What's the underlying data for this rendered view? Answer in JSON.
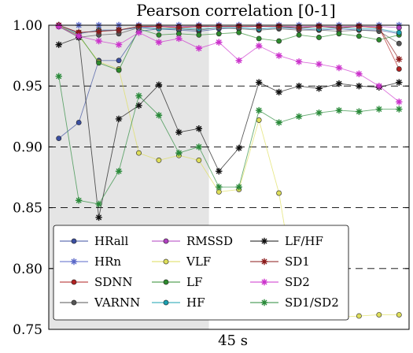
{
  "chart_data": {
    "type": "line",
    "title": "Pearson correlation [0-1]",
    "xlabel": "45 s",
    "ylabel": "",
    "ylim": [
      0.75,
      1.0
    ],
    "yticks": [
      0.75,
      0.8,
      0.85,
      0.9,
      0.95,
      1.0
    ],
    "ytick_labels": [
      "0.75",
      "0.80",
      "0.85",
      "0.90",
      "0.95",
      "1.00"
    ],
    "x": [
      1,
      2,
      3,
      4,
      5,
      6,
      7,
      8,
      9,
      10,
      11,
      12,
      13,
      14,
      15,
      16,
      17,
      18
    ],
    "xlim": [
      0.5,
      18.5
    ],
    "dashed_grid": [
      0.8,
      0.85,
      0.9,
      0.95
    ],
    "shaded_x_range": [
      0.5,
      8.5
    ],
    "shade_color": "#e5e5e5",
    "legend_position": "lower-left",
    "series": [
      {
        "name": "HRall",
        "color": "#3b4fa0",
        "marker": "dot",
        "values": [
          0.907,
          0.92,
          0.971,
          0.971,
          0.995,
          0.997,
          0.996,
          0.995,
          0.997,
          0.998,
          0.997,
          0.998,
          0.997,
          0.996,
          0.997,
          0.996,
          0.996,
          0.993
        ]
      },
      {
        "name": "HRn",
        "color": "#5a68c8",
        "marker": "star",
        "values": [
          1.0,
          1.0,
          1.0,
          1.0,
          1.0,
          1.0,
          1.0,
          1.0,
          1.0,
          1.0,
          1.0,
          1.0,
          1.0,
          1.0,
          1.0,
          1.0,
          1.0,
          1.0
        ]
      },
      {
        "name": "SDNN",
        "color": "#b22222",
        "marker": "dot",
        "values": [
          1.0,
          0.994,
          0.995,
          0.996,
          0.999,
          0.999,
          0.998,
          0.999,
          0.999,
          0.999,
          0.999,
          0.999,
          0.998,
          0.999,
          0.998,
          0.999,
          0.998,
          0.964
        ]
      },
      {
        "name": "VARNN",
        "color": "#555555",
        "marker": "dot",
        "values": [
          0.999,
          0.99,
          0.992,
          0.993,
          0.998,
          0.997,
          0.997,
          0.996,
          0.998,
          0.997,
          0.996,
          0.997,
          0.996,
          0.996,
          0.995,
          0.996,
          0.995,
          0.985
        ]
      },
      {
        "name": "RMSSD",
        "color": "#b040c0",
        "marker": "dot",
        "values": [
          1.0,
          0.993,
          0.996,
          0.996,
          0.998,
          0.999,
          0.999,
          0.999,
          0.999,
          0.999,
          0.999,
          0.999,
          0.999,
          0.999,
          0.999,
          0.999,
          0.999,
          0.998
        ]
      },
      {
        "name": "VLF",
        "color": "#dede5a",
        "marker": "dot",
        "values": [
          1.0,
          0.991,
          0.97,
          0.964,
          0.895,
          0.889,
          0.893,
          0.889,
          0.863,
          0.865,
          0.922,
          0.862,
          0.763,
          0.762,
          0.76,
          0.761,
          0.762,
          0.762
        ]
      },
      {
        "name": "LF",
        "color": "#2e8b2e",
        "marker": "dot",
        "values": [
          0.999,
          0.992,
          0.969,
          0.963,
          0.997,
          0.992,
          0.993,
          0.992,
          0.993,
          0.994,
          0.989,
          0.987,
          0.992,
          0.99,
          0.993,
          0.991,
          0.988,
          0.992
        ]
      },
      {
        "name": "HF",
        "color": "#1aa0b0",
        "marker": "dot",
        "values": [
          1.0,
          0.993,
          0.996,
          0.996,
          0.998,
          0.997,
          0.997,
          0.997,
          0.998,
          0.998,
          0.997,
          0.998,
          0.998,
          0.997,
          0.998,
          0.997,
          0.997,
          0.994
        ]
      },
      {
        "name": "LF/HF",
        "color": "#111111",
        "marker": "star",
        "values": [
          0.984,
          0.99,
          0.842,
          0.923,
          0.934,
          0.951,
          0.912,
          0.915,
          0.88,
          0.899,
          0.953,
          0.945,
          0.95,
          0.948,
          0.952,
          0.95,
          0.949,
          0.953
        ]
      },
      {
        "name": "SD1",
        "color": "#8b1a1a",
        "marker": "star",
        "values": [
          1.0,
          0.994,
          0.995,
          0.996,
          0.999,
          0.999,
          0.998,
          0.999,
          0.999,
          0.999,
          0.999,
          0.999,
          0.998,
          0.999,
          0.998,
          0.999,
          0.998,
          0.972
        ]
      },
      {
        "name": "SD2",
        "color": "#cc33cc",
        "marker": "star",
        "values": [
          0.999,
          0.991,
          0.987,
          0.984,
          0.994,
          0.986,
          0.989,
          0.981,
          0.986,
          0.971,
          0.983,
          0.975,
          0.97,
          0.968,
          0.965,
          0.96,
          0.95,
          0.937
        ]
      },
      {
        "name": "SD1/SD2",
        "color": "#2a8a3a",
        "marker": "star",
        "values": [
          0.958,
          0.856,
          0.853,
          0.88,
          0.942,
          0.926,
          0.895,
          0.9,
          0.867,
          0.867,
          0.93,
          0.92,
          0.925,
          0.928,
          0.93,
          0.929,
          0.931,
          0.931
        ]
      }
    ]
  }
}
